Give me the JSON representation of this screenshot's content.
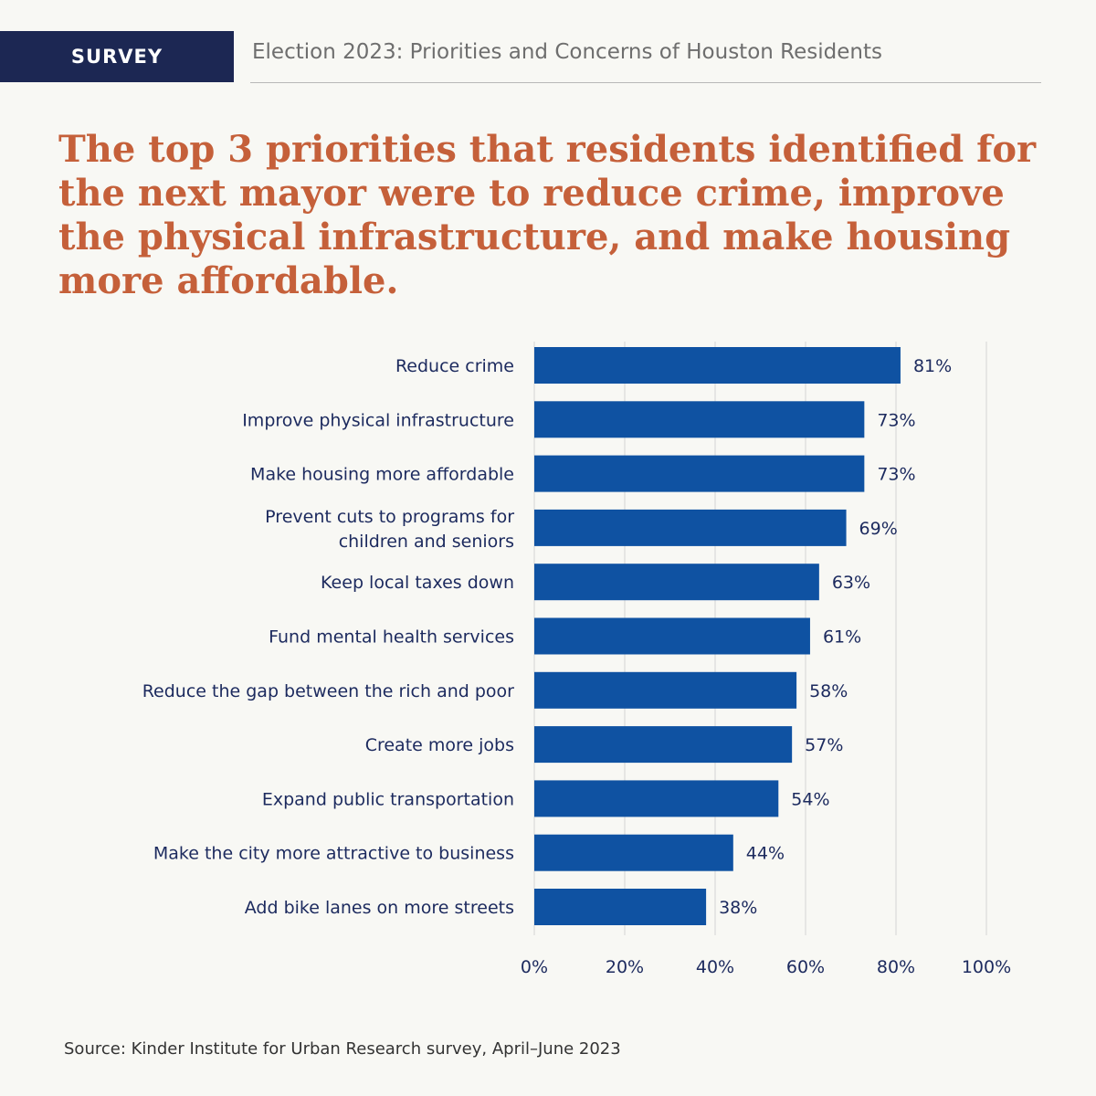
{
  "header": {
    "tag": "SURVEY",
    "title": "Election 2023: Priorities and Concerns of Houston Residents"
  },
  "headline": "The top 3 priorities that residents identified for the next mayor were to reduce crime, improve the physical infrastructure, and make housing more affordable.",
  "source": "Source: Kinder Institute for Urban Research survey, April–June 2023",
  "colors": {
    "bar": "#0f52a2",
    "label": "#1c2a5e",
    "grid": "#d4d4d4",
    "headline": "#c5603a",
    "tag_bg": "#1c2753"
  },
  "chart_data": {
    "type": "bar",
    "orientation": "horizontal",
    "categories": [
      [
        "Reduce crime"
      ],
      [
        "Improve physical infrastructure"
      ],
      [
        "Make housing more affordable"
      ],
      [
        "Prevent cuts to programs for",
        "children and seniors"
      ],
      [
        "Keep local taxes down"
      ],
      [
        "Fund mental health services"
      ],
      [
        "Reduce the gap between the rich and poor"
      ],
      [
        "Create more jobs"
      ],
      [
        "Expand public transportation"
      ],
      [
        "Make the city more attractive to business"
      ],
      [
        "Add bike lanes on more streets"
      ]
    ],
    "values": [
      81,
      73,
      73,
      69,
      63,
      61,
      58,
      57,
      54,
      44,
      38
    ],
    "value_labels": [
      "81%",
      "73%",
      "73%",
      "69%",
      "63%",
      "61%",
      "58%",
      "57%",
      "54%",
      "44%",
      "38%"
    ],
    "xlim": [
      0,
      100
    ],
    "x_ticks": [
      0,
      20,
      40,
      60,
      80,
      100
    ],
    "x_tick_labels": [
      "0%",
      "20%",
      "40%",
      "60%",
      "80%",
      "100%"
    ],
    "grid": true
  }
}
